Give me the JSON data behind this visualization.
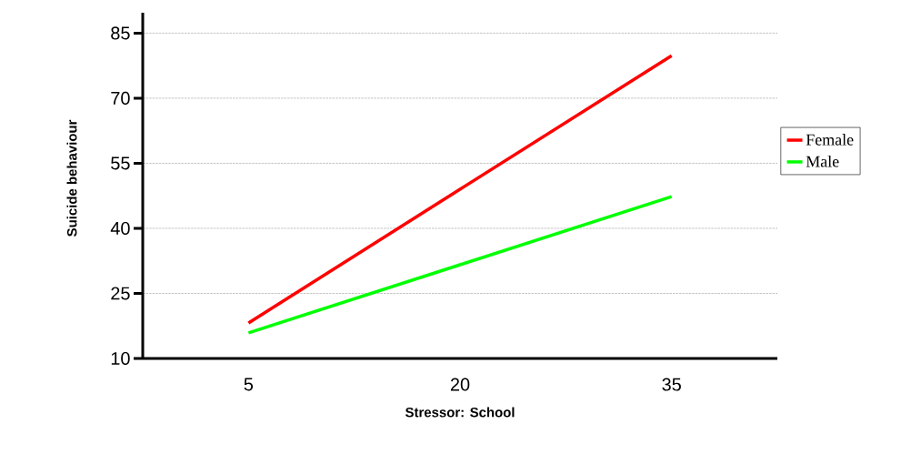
{
  "chart_data": {
    "type": "line",
    "xlabel": "Stressor: School",
    "ylabel": "Suicide behaviour",
    "categories": [
      "5",
      "20",
      "35"
    ],
    "series": [
      {
        "name": "Female",
        "color": "#ff0000",
        "values": [
          18.2,
          49,
          79.8
        ]
      },
      {
        "name": "Male",
        "color": "#00ff00",
        "values": [
          15.9,
          31.6,
          47.3
        ]
      }
    ],
    "ylim": [
      10,
      89.7
    ],
    "yticks": [
      10,
      25,
      40,
      55,
      70,
      85
    ],
    "grid": "y",
    "legend": "right",
    "marker": "none",
    "line_style": "solid"
  }
}
